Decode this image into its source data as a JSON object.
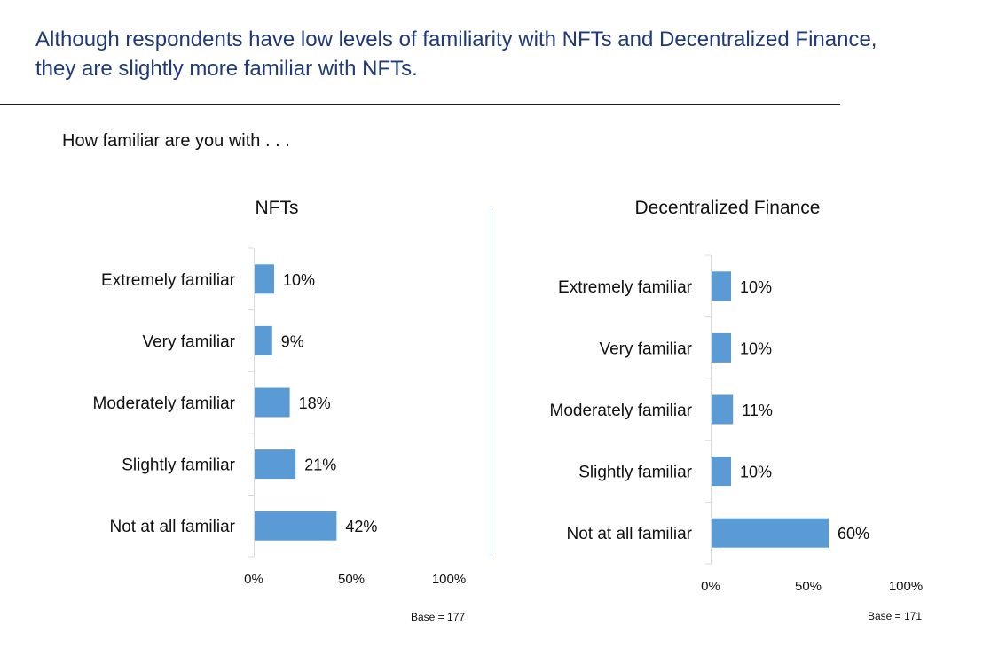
{
  "headline": {
    "line1": "Although respondents have low levels of familiarity with NFTs and Decentralized Finance,",
    "line2": "they are slightly more familiar with NFTs."
  },
  "question": "How familiar are you with . . .",
  "colors": {
    "bar": "#5b9bd5",
    "headline": "#1f3a78",
    "divider": "#4e7fb5"
  },
  "chart_data": [
    {
      "type": "bar",
      "orientation": "horizontal",
      "title": "NFTs",
      "categories": [
        "Extremely familiar",
        "Very familiar",
        "Moderately familiar",
        "Slightly familiar",
        "Not at all familiar"
      ],
      "values": [
        10,
        9,
        18,
        21,
        42
      ],
      "value_labels": [
        "10%",
        "9%",
        "18%",
        "21%",
        "42%"
      ],
      "xlim": [
        0,
        100
      ],
      "x_ticks": [
        0,
        50,
        100
      ],
      "x_tick_labels": [
        "0%",
        "50%",
        "100%"
      ],
      "grid": false,
      "note": "Base = 177"
    },
    {
      "type": "bar",
      "orientation": "horizontal",
      "title": "Decentralized Finance",
      "categories": [
        "Extremely familiar",
        "Very familiar",
        "Moderately familiar",
        "Slightly familiar",
        "Not at all familiar"
      ],
      "values": [
        10,
        10,
        11,
        10,
        60
      ],
      "value_labels": [
        "10%",
        "10%",
        "11%",
        "10%",
        "60%"
      ],
      "xlim": [
        0,
        100
      ],
      "x_ticks": [
        0,
        50,
        100
      ],
      "x_tick_labels": [
        "0%",
        "50%",
        "100%"
      ],
      "grid": false,
      "note": "Base = 171"
    }
  ]
}
